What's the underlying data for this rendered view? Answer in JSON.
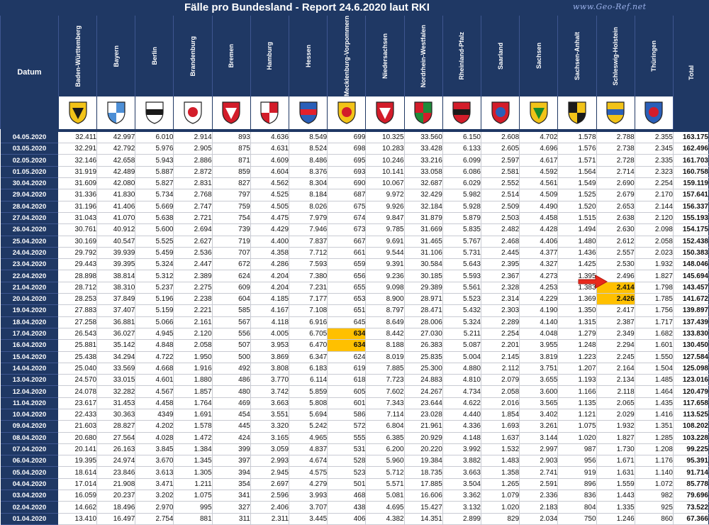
{
  "header": {
    "title": "Fälle pro Bundesland - Report 24.6.2020 laut RKI",
    "site": "www.Geo-Ref.net",
    "datum_label": "Datum",
    "total_label": "Total"
  },
  "states": [
    {
      "name": "Baden-Württemberg",
      "crest": "baden-wuerttemberg-crest-icon",
      "colors": [
        "#f2c318",
        "#1a1a1a"
      ]
    },
    {
      "name": "Bayern",
      "crest": "bayern-crest-icon",
      "colors": [
        "#4d8fd6",
        "#ffffff"
      ]
    },
    {
      "name": "Berlin",
      "crest": "berlin-crest-icon",
      "colors": [
        "#ffffff",
        "#1a1a1a"
      ]
    },
    {
      "name": "Brandenburg",
      "crest": "brandenburg-crest-icon",
      "colors": [
        "#ffffff",
        "#d31d2a"
      ]
    },
    {
      "name": "Bremen",
      "crest": "bremen-crest-icon",
      "colors": [
        "#d31d2a",
        "#ffffff"
      ]
    },
    {
      "name": "Hamburg",
      "crest": "hamburg-crest-icon",
      "colors": [
        "#d31d2a",
        "#ffffff"
      ]
    },
    {
      "name": "Hessen",
      "crest": "hessen-crest-icon",
      "colors": [
        "#2a5fb8",
        "#e3202c"
      ]
    },
    {
      "name": "Mecklenburg-Vorpommern",
      "crest": "mecklenburg-vorpommern-crest-icon",
      "colors": [
        "#f2c318",
        "#d31d2a"
      ]
    },
    {
      "name": "Niedersachsen",
      "crest": "niedersachsen-crest-icon",
      "colors": [
        "#d31d2a",
        "#ffffff"
      ]
    },
    {
      "name": "Nordrhein-Westfalen",
      "crest": "nordrhein-westfalen-crest-icon",
      "colors": [
        "#1f8b3a",
        "#d31d2a"
      ]
    },
    {
      "name": "Rheinland-Pfalz",
      "crest": "rheinland-pfalz-crest-icon",
      "colors": [
        "#d31d2a",
        "#1a1a1a"
      ]
    },
    {
      "name": "Saarland",
      "crest": "saarland-crest-icon",
      "colors": [
        "#d31d2a",
        "#2a5fb8"
      ]
    },
    {
      "name": "Sachsen",
      "crest": "sachsen-crest-icon",
      "colors": [
        "#f2c318",
        "#1a8a2a"
      ]
    },
    {
      "name": "Sachsen-Anhalt",
      "crest": "sachsen-anhalt-crest-icon",
      "colors": [
        "#f2c318",
        "#1a1a1a"
      ]
    },
    {
      "name": "Schleswig-Holstein",
      "crest": "schleswig-holstein-crest-icon",
      "colors": [
        "#f2c318",
        "#2a5fb8"
      ]
    },
    {
      "name": "Thüringen",
      "crest": "thueringen-crest-icon",
      "colors": [
        "#2a5fb8",
        "#d31d2a"
      ]
    }
  ],
  "rows": [
    {
      "date": "04.05.2020",
      "values": [
        "32.411",
        "42.997",
        "6.010",
        "2.914",
        "893",
        "4.636",
        "8.549",
        "699",
        "10.325",
        "33.560",
        "6.150",
        "2.608",
        "4.702",
        "1.578",
        "2.788",
        "2.355"
      ],
      "total": "163.175"
    },
    {
      "date": "03.05.2020",
      "values": [
        "32.291",
        "42.792",
        "5.976",
        "2.905",
        "875",
        "4.631",
        "8.524",
        "698",
        "10.283",
        "33.428",
        "6.133",
        "2.605",
        "4.696",
        "1.576",
        "2.738",
        "2.345"
      ],
      "total": "162.496"
    },
    {
      "date": "02.05.2020",
      "values": [
        "32.146",
        "42.658",
        "5.943",
        "2.886",
        "871",
        "4.609",
        "8.486",
        "695",
        "10.246",
        "33.216",
        "6.099",
        "2.597",
        "4.617",
        "1.571",
        "2.728",
        "2.335"
      ],
      "total": "161.703"
    },
    {
      "date": "01.05.2020",
      "values": [
        "31.919",
        "42.489",
        "5.887",
        "2.872",
        "859",
        "4.604",
        "8.376",
        "693",
        "10.141",
        "33.058",
        "6.086",
        "2.581",
        "4.592",
        "1.564",
        "2.714",
        "2.323"
      ],
      "total": "160.758"
    },
    {
      "date": "30.04.2020",
      "values": [
        "31.609",
        "42.080",
        "5.827",
        "2.831",
        "827",
        "4.562",
        "8.304",
        "690",
        "10.067",
        "32.687",
        "6.029",
        "2.552",
        "4.561",
        "1.549",
        "2.690",
        "2.254"
      ],
      "total": "159.119"
    },
    {
      "date": "29.04.2020",
      "values": [
        "31.336",
        "41.830",
        "5.734",
        "2.768",
        "797",
        "4.525",
        "8.184",
        "687",
        "9.972",
        "32.429",
        "5.982",
        "2.514",
        "4.509",
        "1.525",
        "2.679",
        "2.170"
      ],
      "total": "157.641"
    },
    {
      "date": "28.04.2020",
      "values": [
        "31.196",
        "41.406",
        "5.669",
        "2.747",
        "759",
        "4.505",
        "8.026",
        "675",
        "9.926",
        "32.184",
        "5.928",
        "2.509",
        "4.490",
        "1.520",
        "2.653",
        "2.144"
      ],
      "total": "156.337"
    },
    {
      "date": "27.04.2020",
      "values": [
        "31.043",
        "41.070",
        "5.638",
        "2.721",
        "754",
        "4.475",
        "7.979",
        "674",
        "9.847",
        "31.879",
        "5.879",
        "2.503",
        "4.458",
        "1.515",
        "2.638",
        "2.120"
      ],
      "total": "155.193"
    },
    {
      "date": "26.04.2020",
      "values": [
        "30.761",
        "40.912",
        "5.600",
        "2.694",
        "739",
        "4.429",
        "7.946",
        "673",
        "9.785",
        "31.669",
        "5.835",
        "2.482",
        "4.428",
        "1.494",
        "2.630",
        "2.098"
      ],
      "total": "154.175"
    },
    {
      "date": "25.04.2020",
      "values": [
        "30.169",
        "40.547",
        "5.525",
        "2.627",
        "719",
        "4.400",
        "7.837",
        "667",
        "9.691",
        "31.465",
        "5.767",
        "2.468",
        "4.406",
        "1.480",
        "2.612",
        "2.058"
      ],
      "total": "152.438"
    },
    {
      "date": "24.04.2020",
      "values": [
        "29.792",
        "39.939",
        "5.459",
        "2.536",
        "707",
        "4.358",
        "7.712",
        "661",
        "9.544",
        "31.106",
        "5.731",
        "2.445",
        "4.377",
        "1.436",
        "2.557",
        "2.023"
      ],
      "total": "150.383"
    },
    {
      "date": "23.04.2020",
      "values": [
        "29.443",
        "39.395",
        "5.324",
        "2.447",
        "672",
        "4.286",
        "7.593",
        "659",
        "9.391",
        "30.584",
        "5.643",
        "2.395",
        "4.327",
        "1.425",
        "2.530",
        "1.932"
      ],
      "total": "148.046"
    },
    {
      "date": "22.04.2020",
      "values": [
        "28.898",
        "38.814",
        "5.312",
        "2.389",
        "624",
        "4.204",
        "7.380",
        "656",
        "9.236",
        "30.185",
        "5.593",
        "2.367",
        "4.273",
        "1.395",
        "2.496",
        "1.827"
      ],
      "total": "145.694"
    },
    {
      "date": "21.04.2020",
      "values": [
        "28.712",
        "38.310",
        "5.237",
        "2.275",
        "609",
        "4.204",
        "7.231",
        "655",
        "9.098",
        "29.389",
        "5.561",
        "2.328",
        "4.253",
        "1.383",
        "2.414",
        "1.798"
      ],
      "total": "143.457"
    },
    {
      "date": "20.04.2020",
      "values": [
        "28.253",
        "37.849",
        "5.196",
        "2.238",
        "604",
        "4.185",
        "7.177",
        "653",
        "8.900",
        "28.971",
        "5.523",
        "2.314",
        "4.229",
        "1.369",
        "2.426",
        "1.785"
      ],
      "total": "141.672"
    },
    {
      "date": "19.04.2020",
      "values": [
        "27.883",
        "37.407",
        "5.159",
        "2.221",
        "585",
        "4.167",
        "7.108",
        "651",
        "8.797",
        "28.471",
        "5.432",
        "2.303",
        "4.190",
        "1.350",
        "2.417",
        "1.756"
      ],
      "total": "139.897"
    },
    {
      "date": "18.04.2020",
      "values": [
        "27.258",
        "36.881",
        "5.066",
        "2.161",
        "567",
        "4.118",
        "6.916",
        "645",
        "8.649",
        "28.006",
        "5.324",
        "2.289",
        "4.140",
        "1.315",
        "2.387",
        "1.717"
      ],
      "total": "137.439"
    },
    {
      "date": "17.04.2020",
      "values": [
        "26.543",
        "36.027",
        "4.945",
        "2.120",
        "556",
        "4.005",
        "6.705",
        "634",
        "8.442",
        "27.030",
        "5.211",
        "2.254",
        "4.048",
        "1.279",
        "2.349",
        "1.682"
      ],
      "total": "133.830"
    },
    {
      "date": "16.04.2020",
      "values": [
        "25.881",
        "35.142",
        "4.848",
        "2.058",
        "507",
        "3.953",
        "6.470",
        "634",
        "8.188",
        "26.383",
        "5.087",
        "2.201",
        "3.955",
        "1.248",
        "2.294",
        "1.601"
      ],
      "total": "130.450"
    },
    {
      "date": "15.04.2020",
      "values": [
        "25.438",
        "34.294",
        "4.722",
        "1.950",
        "500",
        "3.869",
        "6.347",
        "624",
        "8.019",
        "25.835",
        "5.004",
        "2.145",
        "3.819",
        "1.223",
        "2.245",
        "1.550"
      ],
      "total": "127.584"
    },
    {
      "date": "14.04.2020",
      "values": [
        "25.040",
        "33.569",
        "4.668",
        "1.916",
        "492",
        "3.808",
        "6.183",
        "619",
        "7.885",
        "25.300",
        "4.880",
        "2.112",
        "3.751",
        "1.207",
        "2.164",
        "1.504"
      ],
      "total": "125.098"
    },
    {
      "date": "13.04.2020",
      "values": [
        "24.570",
        "33.015",
        "4.601",
        "1.880",
        "486",
        "3.770",
        "6.114",
        "618",
        "7.723",
        "24.883",
        "4.810",
        "2.079",
        "3.655",
        "1.193",
        "2.134",
        "1.485"
      ],
      "total": "123.016"
    },
    {
      "date": "12.04.2020",
      "values": [
        "24.078",
        "32.282",
        "4.567",
        "1.857",
        "480",
        "3.742",
        "5.859",
        "605",
        "7.602",
        "24.267",
        "4.734",
        "2.058",
        "3.600",
        "1.166",
        "2.118",
        "1.464"
      ],
      "total": "120.479"
    },
    {
      "date": "11.04.2020",
      "values": [
        "23.617",
        "31.453",
        "4.458",
        "1.764",
        "469",
        "3.663",
        "5.808",
        "601",
        "7.343",
        "23.644",
        "4.622",
        "2.016",
        "3.565",
        "1.135",
        "2.065",
        "1.435"
      ],
      "total": "117.658"
    },
    {
      "date": "10.04.2020",
      "values": [
        "22.433",
        "30.363",
        "4349",
        "1.691",
        "454",
        "3.551",
        "5.694",
        "586",
        "7.114",
        "23.028",
        "4.440",
        "1.854",
        "3.402",
        "1.121",
        "2.029",
        "1.416"
      ],
      "total": "113.525"
    },
    {
      "date": "09.04.2020",
      "values": [
        "21.603",
        "28.827",
        "4.202",
        "1.578",
        "445",
        "3.320",
        "5.242",
        "572",
        "6.804",
        "21.961",
        "4.336",
        "1.693",
        "3.261",
        "1.075",
        "1.932",
        "1.351"
      ],
      "total": "108.202"
    },
    {
      "date": "08.04.2020",
      "values": [
        "20.680",
        "27.564",
        "4.028",
        "1.472",
        "424",
        "3.165",
        "4.965",
        "555",
        "6.385",
        "20.929",
        "4.148",
        "1.637",
        "3.144",
        "1.020",
        "1.827",
        "1.285"
      ],
      "total": "103.228"
    },
    {
      "date": "07.04.2020",
      "values": [
        "20.141",
        "26.163",
        "3.845",
        "1.384",
        "399",
        "3.059",
        "4.837",
        "531",
        "6.200",
        "20.220",
        "3.992",
        "1.532",
        "2.997",
        "987",
        "1.730",
        "1.208"
      ],
      "total": "99.225"
    },
    {
      "date": "06.04.2020",
      "values": [
        "19.395",
        "24.974",
        "3.670",
        "1.345",
        "397",
        "2.993",
        "4.674",
        "528",
        "5.960",
        "19.384",
        "3.882",
        "1.483",
        "2.903",
        "956",
        "1.671",
        "1.176"
      ],
      "total": "95.391"
    },
    {
      "date": "05.04.2020",
      "values": [
        "18.614",
        "23.846",
        "3.613",
        "1.305",
        "394",
        "2.945",
        "4.575",
        "523",
        "5.712",
        "18.735",
        "3.663",
        "1.358",
        "2.741",
        "919",
        "1.631",
        "1.140"
      ],
      "total": "91.714"
    },
    {
      "date": "04.04.2020",
      "values": [
        "17.014",
        "21.908",
        "3.471",
        "1.211",
        "354",
        "2.697",
        "4.279",
        "501",
        "5.571",
        "17.885",
        "3.504",
        "1.265",
        "2.591",
        "896",
        "1.559",
        "1.072"
      ],
      "total": "85.778"
    },
    {
      "date": "03.04.2020",
      "values": [
        "16.059",
        "20.237",
        "3.202",
        "1.075",
        "341",
        "2.596",
        "3.993",
        "468",
        "5.081",
        "16.606",
        "3.362",
        "1.079",
        "2.336",
        "836",
        "1.443",
        "982"
      ],
      "total": "79.696"
    },
    {
      "date": "02.04.2020",
      "values": [
        "14.662",
        "18.496",
        "2.970",
        "995",
        "327",
        "2.406",
        "3.707",
        "438",
        "4.695",
        "15.427",
        "3.132",
        "1.020",
        "2.183",
        "804",
        "1.335",
        "925"
      ],
      "total": "73.522"
    },
    {
      "date": "01.04.2020",
      "values": [
        "13.410",
        "16.497",
        "2.754",
        "881",
        "311",
        "2.311",
        "3.445",
        "406",
        "4.382",
        "14.351",
        "2.899",
        "829",
        "2.034",
        "750",
        "1.246",
        "860"
      ],
      "total": "67.366"
    }
  ],
  "highlights": [
    {
      "row": 17,
      "col": 7
    },
    {
      "row": 18,
      "col": 7
    },
    {
      "row": 13,
      "col": 14
    },
    {
      "row": 14,
      "col": 14
    }
  ],
  "colors": {
    "header_bg": "#1f3864",
    "highlight": "#ffc000",
    "arrow": "#e8291c"
  }
}
